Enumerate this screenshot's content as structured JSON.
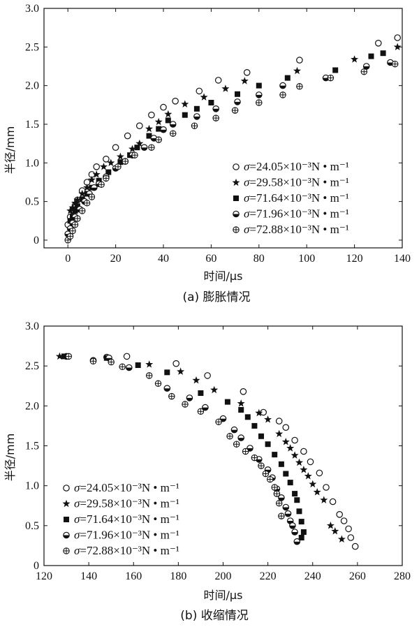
{
  "chart_data": [
    {
      "type": "scatter",
      "title": "",
      "caption": "(a) 膨胀情况",
      "xlabel": "时间/μs",
      "ylabel": "半径/mm",
      "xlim": [
        -10,
        140
      ],
      "ylim": [
        -0.1,
        3.0
      ],
      "xticks": [
        0,
        20,
        40,
        60,
        80,
        100,
        120,
        140
      ],
      "yticks": [
        0,
        0.5,
        1.0,
        1.5,
        2.0,
        2.5,
        3.0
      ],
      "ytick_labels": [
        "0",
        "0.5",
        "1.0",
        "1.5",
        "2.0",
        "2.5",
        "3.0"
      ],
      "legend_position": "center-right",
      "series": [
        {
          "name": "σ=24.05×10⁻³N • m⁻¹",
          "label_value": "24.05",
          "marker": "open-circle",
          "x": [
            0,
            1,
            2,
            3,
            4,
            6,
            8,
            10,
            12,
            16,
            20,
            25,
            30,
            35,
            40,
            45,
            55,
            63,
            75,
            97,
            130,
            138
          ],
          "y": [
            0.2,
            0.3,
            0.38,
            0.45,
            0.52,
            0.64,
            0.75,
            0.85,
            0.95,
            1.05,
            1.2,
            1.35,
            1.48,
            1.62,
            1.72,
            1.8,
            1.93,
            2.07,
            2.17,
            2.33,
            2.55,
            2.62
          ]
        },
        {
          "name": "σ=29.58×10⁻³N • m⁻¹",
          "label_value": "29.58",
          "marker": "star",
          "x": [
            1,
            2,
            3,
            4,
            6,
            8,
            10,
            12,
            15,
            18,
            22,
            27,
            30,
            34,
            38,
            42,
            49,
            57,
            66,
            74,
            96,
            120,
            138
          ],
          "y": [
            0.38,
            0.42,
            0.48,
            0.52,
            0.6,
            0.68,
            0.78,
            0.85,
            0.95,
            1.0,
            1.08,
            1.18,
            1.25,
            1.44,
            1.53,
            1.63,
            1.76,
            1.85,
            1.96,
            2.06,
            2.19,
            2.34,
            2.5
          ]
        },
        {
          "name": "σ=71.64×10⁻³N • m⁻¹",
          "label_value": "71.64",
          "marker": "filled-square",
          "x": [
            1,
            2,
            3,
            4,
            6,
            8,
            10,
            13,
            17,
            22,
            26,
            29,
            34,
            38,
            42,
            49,
            54,
            60,
            71,
            80,
            92,
            112,
            127,
            132
          ],
          "y": [
            0.25,
            0.3,
            0.38,
            0.44,
            0.53,
            0.6,
            0.68,
            0.77,
            0.88,
            1.01,
            1.1,
            1.2,
            1.35,
            1.44,
            1.55,
            1.62,
            1.7,
            1.78,
            1.89,
            2.0,
            2.1,
            2.2,
            2.38,
            2.42
          ]
        },
        {
          "name": "σ=71.96×10⁻³N • m⁻¹",
          "label_value": "71.96",
          "marker": "half-filled-circle",
          "x": [
            0,
            1,
            2,
            3,
            5,
            7,
            9,
            11,
            13,
            16,
            20,
            24,
            27,
            32,
            36,
            40,
            44,
            54,
            62,
            71,
            80,
            90,
            108,
            125,
            135
          ],
          "y": [
            0.08,
            0.15,
            0.22,
            0.3,
            0.4,
            0.5,
            0.6,
            0.68,
            0.73,
            0.82,
            0.93,
            1.02,
            1.1,
            1.2,
            1.32,
            1.43,
            1.5,
            1.6,
            1.7,
            1.79,
            1.88,
            2.0,
            2.1,
            2.25,
            2.3
          ]
        },
        {
          "name": "σ=72.88×10⁻³N • m⁻¹",
          "label_value": "72.88",
          "marker": "crossed-circle",
          "x": [
            0,
            1,
            2,
            3,
            4,
            6,
            8,
            10,
            14,
            16,
            21,
            24,
            28,
            35,
            38,
            44,
            53,
            62,
            70,
            80,
            90,
            97,
            110,
            124,
            137
          ],
          "y": [
            0.0,
            0.05,
            0.12,
            0.2,
            0.28,
            0.38,
            0.48,
            0.56,
            0.72,
            0.8,
            0.95,
            1.02,
            1.1,
            1.2,
            1.3,
            1.38,
            1.48,
            1.58,
            1.68,
            1.78,
            1.88,
            1.99,
            2.1,
            2.18,
            2.28
          ]
        }
      ]
    },
    {
      "type": "scatter",
      "title": "",
      "caption": "(b) 收缩情况",
      "xlabel": "时间/μs",
      "ylabel": "半径/mm",
      "xlim": [
        120,
        280
      ],
      "ylim": [
        0,
        3.0
      ],
      "xticks": [
        120,
        140,
        160,
        180,
        200,
        220,
        240,
        260,
        280
      ],
      "yticks": [
        0,
        0.5,
        1.0,
        1.5,
        2.0,
        2.5,
        3.0
      ],
      "ytick_labels": [
        "0",
        "0.5",
        "1.0",
        "1.5",
        "2.0",
        "2.5",
        "3.0"
      ],
      "legend_position": "bottom-left",
      "series": [
        {
          "name": "σ=24.05×10⁻³N • m⁻¹",
          "label_value": "24.05",
          "marker": "open-circle",
          "x": [
            130,
            148,
            157,
            179,
            193,
            209,
            218,
            225,
            228,
            232,
            236,
            239,
            243,
            246,
            249,
            252,
            254,
            256,
            257,
            259
          ],
          "y": [
            2.62,
            2.61,
            2.62,
            2.53,
            2.38,
            2.18,
            1.92,
            1.81,
            1.73,
            1.57,
            1.43,
            1.3,
            1.16,
            0.98,
            0.8,
            0.64,
            0.56,
            0.46,
            0.35,
            0.24
          ]
        },
        {
          "name": "σ=29.58×10⁻³N • m⁻¹",
          "label_value": "29.58",
          "marker": "star",
          "x": [
            127,
            167,
            181,
            188,
            196,
            208,
            216,
            220,
            225,
            228,
            230,
            232,
            234,
            236,
            238,
            240,
            242,
            245,
            248,
            250,
            253
          ],
          "y": [
            2.62,
            2.52,
            2.43,
            2.32,
            2.2,
            2.03,
            1.91,
            1.83,
            1.65,
            1.55,
            1.47,
            1.38,
            1.29,
            1.2,
            1.12,
            1.02,
            0.92,
            0.82,
            0.5,
            0.43,
            0.33
          ]
        },
        {
          "name": "σ=71.64×10⁻³N • m⁻¹",
          "label_value": "71.64",
          "marker": "filled-square",
          "x": [
            129,
            148,
            162,
            175,
            190,
            202,
            208,
            211,
            214,
            217,
            220,
            223,
            226,
            228,
            230,
            232,
            233,
            234,
            235,
            235,
            236
          ],
          "y": [
            2.62,
            2.6,
            2.51,
            2.42,
            2.16,
            2.05,
            1.95,
            1.86,
            1.75,
            1.62,
            1.52,
            1.39,
            1.27,
            1.15,
            1.04,
            0.9,
            0.82,
            0.68,
            0.55,
            0.35,
            0.42
          ]
        },
        {
          "name": "σ=71.96×10⁻³N • m⁻¹",
          "label_value": "71.96",
          "marker": "half-filled-circle",
          "x": [
            142,
            149,
            158,
            175,
            185,
            192,
            200,
            205,
            208,
            212,
            216,
            220,
            222,
            224,
            226,
            228,
            229,
            230,
            231,
            232,
            233
          ],
          "y": [
            2.57,
            2.6,
            2.48,
            2.22,
            2.1,
            1.98,
            1.84,
            1.7,
            1.6,
            1.47,
            1.33,
            1.2,
            1.1,
            0.96,
            0.85,
            0.73,
            0.65,
            0.56,
            0.5,
            0.42,
            0.3
          ]
        },
        {
          "name": "σ=72.88×10⁻³N • m⁻¹",
          "label_value": "72.88",
          "marker": "crossed-circle",
          "x": [
            131,
            142,
            150,
            155,
            167,
            171,
            177,
            183,
            190,
            198,
            203,
            206,
            210,
            214,
            217,
            219,
            221,
            223,
            224,
            225,
            226
          ],
          "y": [
            2.62,
            2.56,
            2.55,
            2.49,
            2.38,
            2.28,
            2.12,
            2.02,
            1.93,
            1.8,
            1.62,
            1.52,
            1.43,
            1.35,
            1.25,
            1.15,
            1.08,
            0.98,
            0.9,
            0.78,
            0.62
          ]
        }
      ]
    }
  ],
  "legend_text": {
    "sigma": "σ",
    "prefix": "=",
    "suffix": "×10⁻³N • m⁻¹"
  }
}
